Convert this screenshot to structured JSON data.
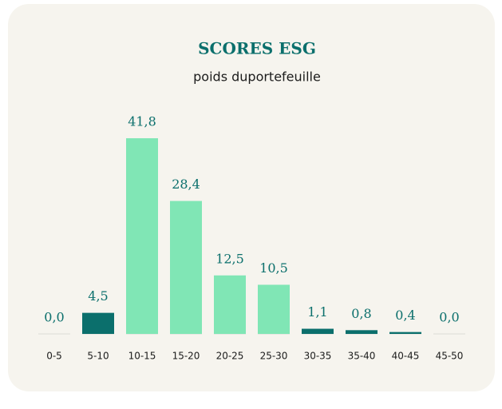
{
  "chart_data": {
    "type": "bar",
    "title": "SCORES ESG",
    "subtitle": "poids duportefeuille",
    "categories": [
      "0-5",
      "5-10",
      "10-15",
      "15-20",
      "20-25",
      "25-30",
      "30-35",
      "35-40",
      "40-45",
      "45-50"
    ],
    "values": [
      0.0,
      4.5,
      41.8,
      28.4,
      12.5,
      10.5,
      1.1,
      0.8,
      0.4,
      0.0
    ],
    "value_labels": [
      "0,0",
      "4,5",
      "41,8",
      "28,4",
      "12,5",
      "10,5",
      "1,1",
      "0,8",
      "0,4",
      "0,0"
    ],
    "colors": [
      "#0b6f6c",
      "#0b6f6c",
      "#80e6b5",
      "#80e6b5",
      "#80e6b5",
      "#80e6b5",
      "#0b6f6c",
      "#0b6f6c",
      "#0b6f6c",
      "#0b6f6c"
    ]
  }
}
